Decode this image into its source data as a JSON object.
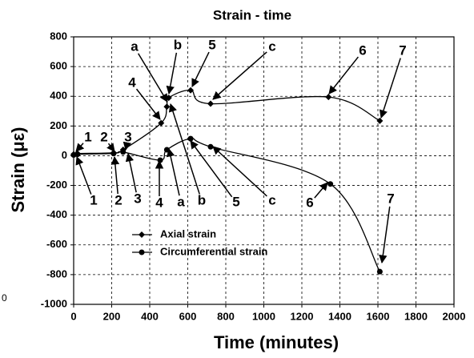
{
  "chart_data": {
    "type": "line",
    "title": "Strain - time",
    "x_label": "Time (minutes)",
    "y_label": "Strain (με)",
    "xlim": [
      0,
      2000
    ],
    "xticks": [
      0,
      200,
      400,
      600,
      800,
      1000,
      1200,
      1400,
      1600,
      1800,
      2000
    ],
    "ylim": [
      -1000,
      800
    ],
    "yticks": [
      -1000,
      -800,
      -600,
      -400,
      -200,
      0,
      200,
      400,
      600,
      800
    ],
    "grid": true,
    "series": [
      {
        "name": "Axial strain",
        "color": "#000000",
        "marker": "diamond",
        "x": [
          0,
          20,
          210,
          260,
          460,
          490,
          500,
          615,
          720,
          1340,
          1610
        ],
        "values": [
          10,
          15,
          20,
          40,
          220,
          330,
          390,
          440,
          350,
          395,
          235
        ]
      },
      {
        "name": "Circumferential strain",
        "color": "#000000",
        "marker": "circle",
        "x": [
          0,
          20,
          210,
          260,
          455,
          490,
          615,
          720,
          1350,
          1610
        ],
        "values": [
          5,
          10,
          15,
          25,
          -30,
          40,
          115,
          60,
          -190,
          -780
        ]
      }
    ],
    "annotations": [
      "1",
      "2",
      "3",
      "4",
      "a",
      "b",
      "5",
      "c",
      "6",
      "7",
      "1",
      "2",
      "3",
      "4",
      "a",
      "b",
      "5",
      "c",
      "6",
      "7"
    ],
    "stray_label": "0"
  }
}
